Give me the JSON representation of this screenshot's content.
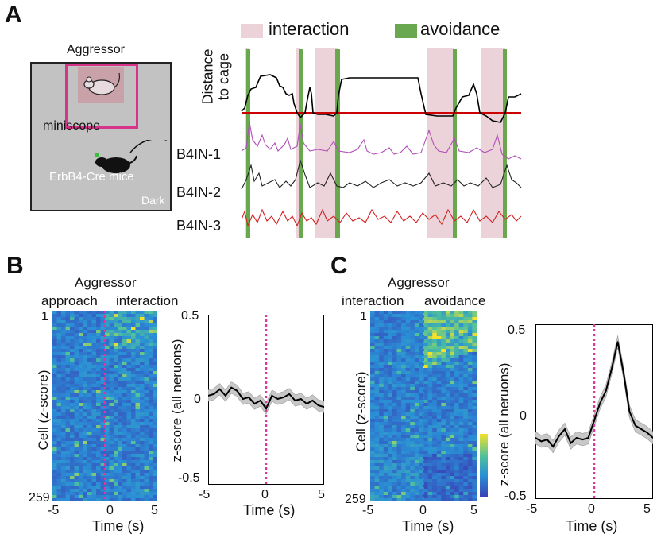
{
  "panel_a": {
    "label": "A",
    "legend": {
      "interaction": "interaction",
      "avoidance": "avoidance",
      "interaction_color": "#ecd3d9",
      "avoidance_color": "#6aa84f"
    },
    "cage": {
      "aggressor": "Aggressor",
      "miniscope": "miniscope",
      "mouse_line": "ErbB4-Cre mice",
      "lighting": "Dark"
    },
    "trace_ylabel": [
      "Distance",
      "to cage"
    ],
    "traces": [
      "B4IN-1",
      "B4IN-2",
      "B4IN-3"
    ],
    "trace_colors": {
      "distance": "#000000",
      "threshold": "#cc0000",
      "B4IN-1": "#b04fb8",
      "B4IN-2": "#222222",
      "B4IN-3": "#d42020"
    }
  },
  "panel_b": {
    "label": "B",
    "heatmap_title": "Aggressor",
    "heatmap_left": "approach",
    "heatmap_right": "interaction",
    "heatmap_ylabel": "Cell (z-score)",
    "heatmap_ytick_top": "1",
    "heatmap_ytick_bottom": "259",
    "xlabel": "Time (s)",
    "xticks": [
      "-5",
      "0",
      "5"
    ],
    "line_ylabel": "z-score (all neruons)",
    "line_yticks": [
      "0.5",
      "0",
      "-0.5"
    ]
  },
  "panel_c": {
    "label": "C",
    "heatmap_title": "Aggressor",
    "heatmap_left": "interaction",
    "heatmap_right": "avoidance",
    "heatmap_ylabel": "Cell (z-score)",
    "heatmap_ytick_top": "1",
    "heatmap_ytick_bottom": "259",
    "xlabel": "Time (s)",
    "xticks": [
      "-5",
      "0",
      "5"
    ],
    "line_ylabel": "z-score (all neruons)",
    "line_yticks": [
      "0.5",
      "0",
      "-0.5"
    ]
  },
  "chart_data": [
    {
      "type": "line",
      "panel": "B",
      "xlabel": "Time (s)",
      "ylabel": "z-score (all neruons)",
      "xlim": [
        -5,
        5
      ],
      "ylim": [
        -0.55,
        0.5
      ],
      "x": [
        -5,
        -4.5,
        -4,
        -3.5,
        -3,
        -2.5,
        -2,
        -1.5,
        -1,
        -0.5,
        0,
        0.5,
        1,
        1.5,
        2,
        2.5,
        3,
        3.5,
        4,
        4.5,
        5
      ],
      "series": [
        {
          "values": [
            0,
            0.01,
            0.04,
            0.0,
            0.05,
            0.03,
            -0.02,
            -0.01,
            -0.05,
            -0.03,
            -0.08,
            0.0,
            -0.02,
            -0.01,
            0.01,
            -0.03,
            -0.02,
            -0.05,
            -0.03,
            -0.06,
            -0.07
          ]
        }
      ]
    },
    {
      "type": "line",
      "panel": "C",
      "xlabel": "Time (s)",
      "ylabel": "z-score (all neruons)",
      "xlim": [
        -5,
        5
      ],
      "ylim": [
        -0.5,
        0.5
      ],
      "x": [
        -5,
        -4.5,
        -4,
        -3.5,
        -3,
        -2.5,
        -2,
        -1.5,
        -1,
        -0.5,
        0,
        0.5,
        1,
        1.5,
        2,
        2.5,
        3,
        3.5,
        4,
        4.5,
        5
      ],
      "series": [
        {
          "values": [
            -0.15,
            -0.17,
            -0.16,
            -0.2,
            -0.14,
            -0.1,
            -0.18,
            -0.15,
            -0.16,
            -0.15,
            -0.05,
            0.05,
            0.12,
            0.25,
            0.4,
            0.22,
            0.0,
            -0.08,
            -0.1,
            -0.12,
            -0.15
          ]
        }
      ]
    }
  ]
}
